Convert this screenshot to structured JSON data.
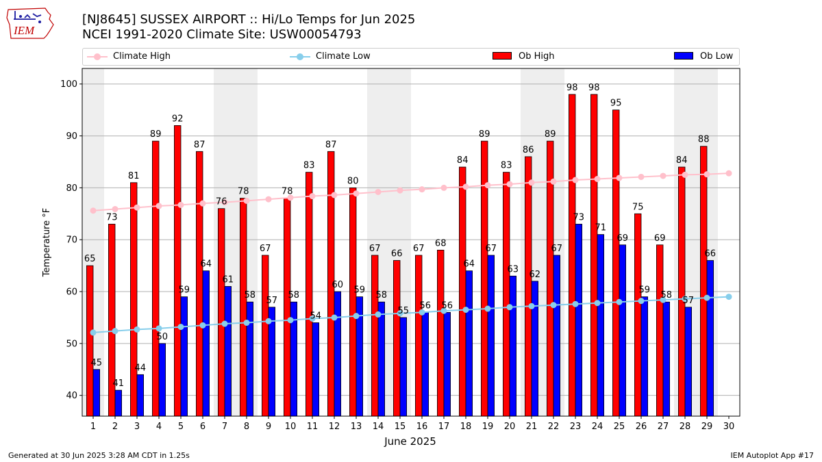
{
  "title_line1": "[NJ8645] SUSSEX AIRPORT :: Hi/Lo Temps for Jun 2025",
  "title_line2": "NCEI 1991-2020 Climate Site: USW00054793",
  "logo_text": "IEM",
  "footer_left": "Generated at 30 Jun 2025 3:28 AM CDT in 1.25s",
  "footer_right": "IEM Autoplot App #17",
  "colors": {
    "ob_high": "#ff0000",
    "ob_low": "#0000ff",
    "climate_high": "#ffc0cb",
    "climate_low": "#87ceeb",
    "weekend_shade": "#eeeeee",
    "grid": "#b0b0b0"
  },
  "chart_data": {
    "type": "bar",
    "xlabel": "June 2025",
    "ylabel": "Temperature °F",
    "ylim": [
      36,
      103
    ],
    "yticks": [
      40,
      50,
      60,
      70,
      80,
      90,
      100
    ],
    "grid": "horizontal",
    "legend_position": "top, above plot",
    "categories": [
      1,
      2,
      3,
      4,
      5,
      6,
      7,
      8,
      9,
      10,
      11,
      12,
      13,
      14,
      15,
      16,
      17,
      18,
      19,
      20,
      21,
      22,
      23,
      24,
      25,
      26,
      27,
      28,
      29,
      30
    ],
    "shaded_days": [
      1,
      7,
      8,
      14,
      15,
      21,
      22,
      28,
      29
    ],
    "series": [
      {
        "name": "Ob High",
        "kind": "bar",
        "values": [
          65,
          73,
          81,
          89,
          92,
          87,
          76,
          78,
          67,
          78,
          83,
          87,
          80,
          67,
          66,
          67,
          68,
          84,
          89,
          83,
          86,
          89,
          98,
          98,
          95,
          75,
          69,
          84,
          88,
          null
        ]
      },
      {
        "name": "Ob Low",
        "kind": "bar",
        "values": [
          45,
          41,
          44,
          50,
          59,
          64,
          61,
          58,
          57,
          58,
          54,
          60,
          59,
          58,
          55,
          56,
          56,
          64,
          67,
          63,
          62,
          67,
          73,
          71,
          69,
          59,
          58,
          57,
          66,
          null
        ]
      },
      {
        "name": "Climate High",
        "kind": "line",
        "values": [
          75.6,
          75.9,
          76.2,
          76.5,
          76.7,
          77.0,
          77.2,
          77.5,
          77.8,
          78.1,
          78.4,
          78.6,
          78.9,
          79.2,
          79.5,
          79.7,
          80.0,
          80.2,
          80.5,
          80.7,
          81.0,
          81.2,
          81.5,
          81.7,
          81.9,
          82.1,
          82.3,
          82.5,
          82.6,
          82.8
        ]
      },
      {
        "name": "Climate Low",
        "kind": "line",
        "values": [
          52.1,
          52.4,
          52.7,
          52.9,
          53.2,
          53.5,
          53.8,
          54.0,
          54.3,
          54.5,
          54.8,
          55.0,
          55.3,
          55.6,
          55.8,
          56.0,
          56.3,
          56.5,
          56.7,
          57.0,
          57.2,
          57.4,
          57.6,
          57.8,
          58.0,
          58.2,
          58.4,
          58.6,
          58.8,
          59.0
        ]
      }
    ]
  }
}
